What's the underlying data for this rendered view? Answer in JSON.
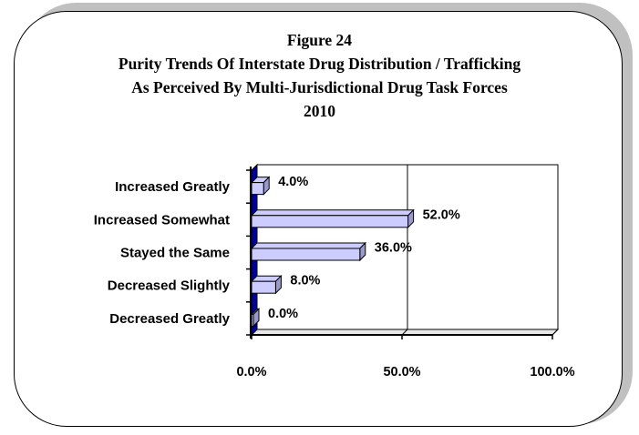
{
  "figure_label": "Figure 24",
  "title_line1": "Purity Trends Of Interstate Drug Distribution / Trafficking",
  "title_line2": "As Perceived By Multi-Jurisdictional Drug Task Forces",
  "title_line3": "2010",
  "colors": {
    "bar_fill": "#ccccff",
    "bar_side": "#9999cc",
    "axis_wall": "#0000a0",
    "frame_shadow": "#c0c0c0"
  },
  "chart_data": {
    "type": "bar",
    "orientation": "horizontal",
    "style": "3d",
    "title": "Purity Trends Of Interstate Drug Distribution / Trafficking As Perceived By Multi-Jurisdictional Drug Task Forces 2010",
    "categories": [
      "Increased Greatly",
      "Increased Somewhat",
      "Stayed the Same",
      "Decreased Slightly",
      "Decreased Greatly"
    ],
    "values": [
      4.0,
      52.0,
      36.0,
      8.0,
      0.0
    ],
    "value_labels": [
      "4.0%",
      "52.0%",
      "36.0%",
      "8.0%",
      "0.0%"
    ],
    "ticks": [
      0,
      50,
      100
    ],
    "tick_labels": [
      "0.0%",
      "50.0%",
      "100.0%"
    ],
    "xlim": [
      0,
      100
    ],
    "grid": true,
    "legend": "none",
    "xlabel": "",
    "ylabel": ""
  }
}
